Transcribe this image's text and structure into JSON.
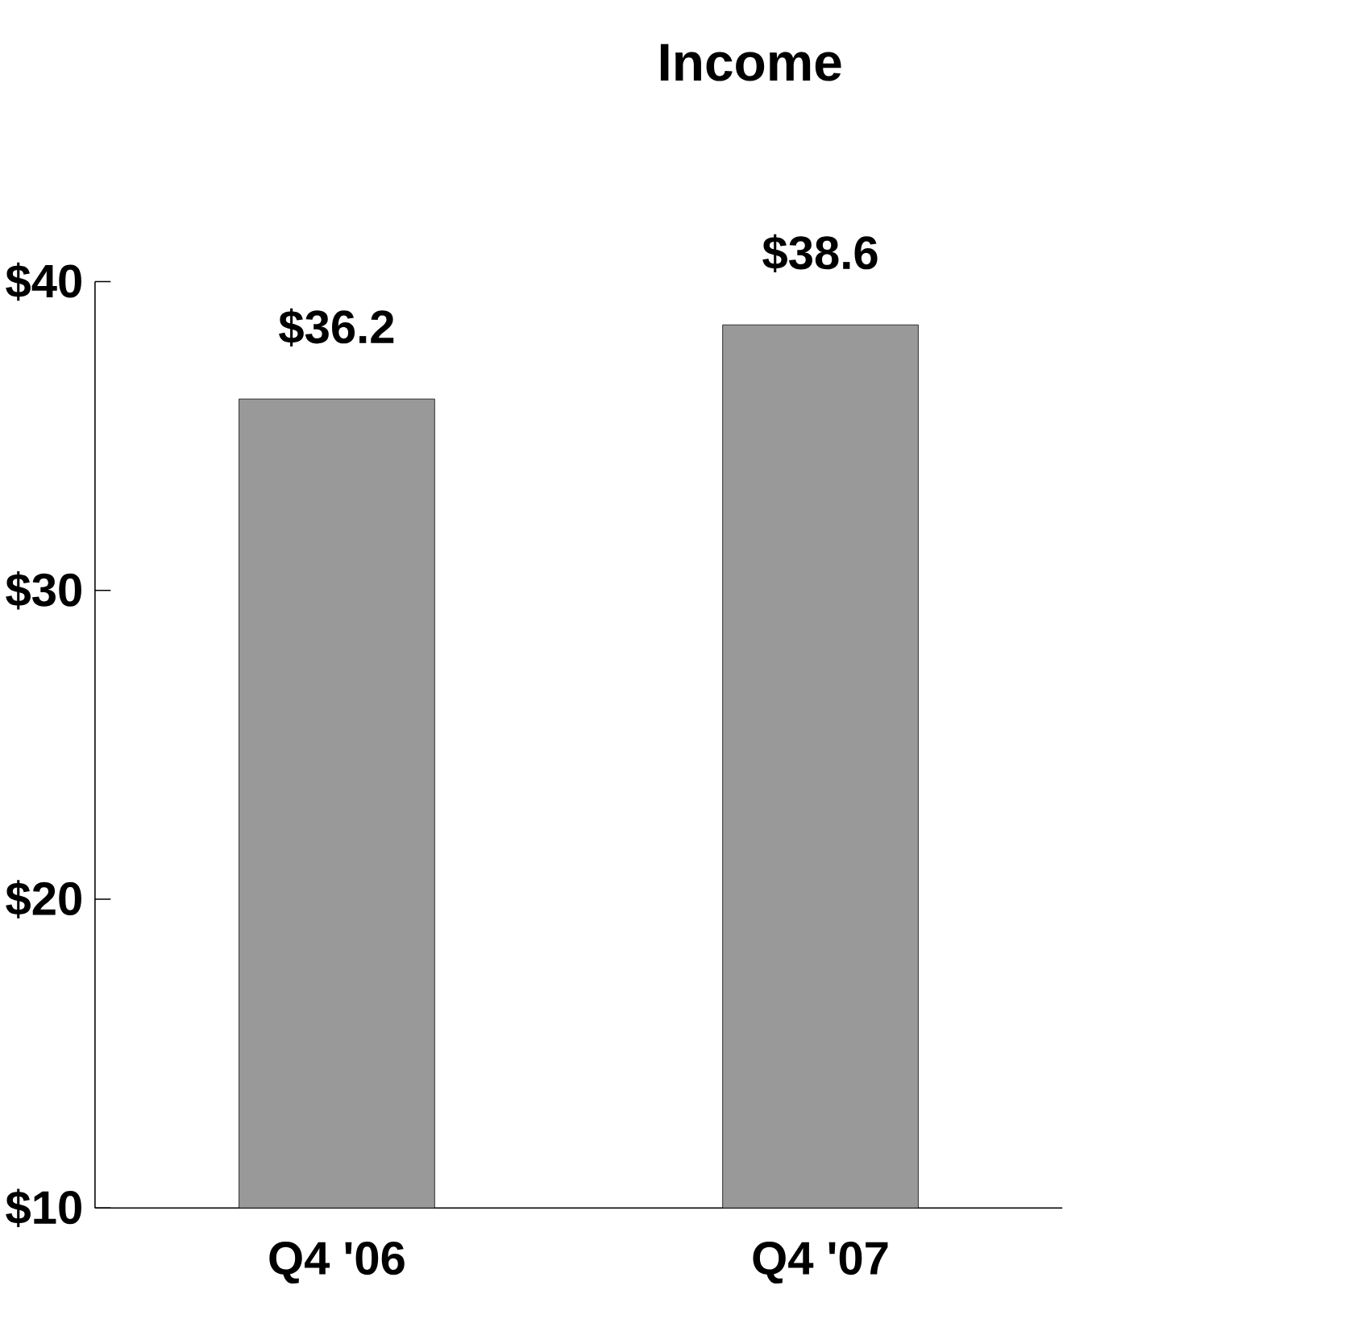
{
  "chart_data": {
    "type": "bar",
    "title": "Income",
    "categories": [
      "Q4 '06",
      "Q4 '07"
    ],
    "values": [
      36.2,
      38.6
    ],
    "value_labels": [
      "$36.2",
      "$38.6"
    ],
    "color": "#999999",
    "ylim": [
      10,
      40
    ],
    "yticks": [
      {
        "value": 10,
        "label": "$10"
      },
      {
        "value": 20,
        "label": "$20"
      },
      {
        "value": 30,
        "label": "$30"
      },
      {
        "value": 40,
        "label": "$40"
      }
    ],
    "grid": false
  }
}
